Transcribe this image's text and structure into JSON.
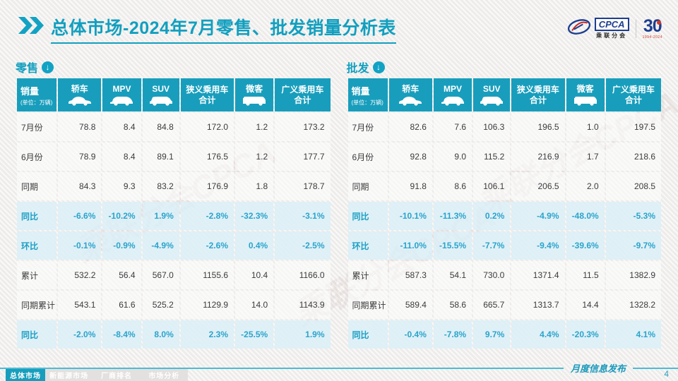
{
  "slide": {
    "title_bold": "总体市场",
    "title_rest": "-2024年7月零售、批发销量分析表",
    "footer_label": "月度信息发布",
    "page_number": "4"
  },
  "logos": {
    "cpca_acronym": "CPCA",
    "cpca_cn": "乘联分会",
    "anniversary_number": "30",
    "anniversary_years": "1994-2024"
  },
  "watermark": "乘联分会CPCA",
  "tables": [
    {
      "section": "零售",
      "sales_label": "销量",
      "unit_label": "(单位：万辆)",
      "columns": [
        {
          "label": "轿车",
          "icon": "sedan-icon"
        },
        {
          "label": "MPV",
          "icon": "mpv-icon"
        },
        {
          "label": "SUV",
          "icon": "suv-icon"
        },
        {
          "label": "狭义乘用车",
          "label2": "合计"
        },
        {
          "label": "微客",
          "icon": "minibus-icon"
        },
        {
          "label": "广义乘用车",
          "label2": "合计"
        }
      ],
      "rows": [
        {
          "label": "7月份",
          "type": "value",
          "cells": [
            "78.8",
            "8.4",
            "84.8",
            "172.0",
            "1.2",
            "173.2"
          ]
        },
        {
          "label": "6月份",
          "type": "value",
          "cells": [
            "78.9",
            "8.4",
            "89.1",
            "176.5",
            "1.2",
            "177.7"
          ]
        },
        {
          "label": "同期",
          "type": "value",
          "cells": [
            "84.3",
            "9.3",
            "83.2",
            "176.9",
            "1.8",
            "178.7"
          ]
        },
        {
          "label": "同比",
          "type": "percent",
          "cells": [
            "-6.6%",
            "-10.2%",
            "1.9%",
            "-2.8%",
            "-32.3%",
            "-3.1%"
          ]
        },
        {
          "label": "环比",
          "type": "percent",
          "cells": [
            "-0.1%",
            "-0.9%",
            "-4.9%",
            "-2.6%",
            "0.4%",
            "-2.5%"
          ]
        },
        {
          "label": "累计",
          "type": "value",
          "cells": [
            "532.2",
            "56.4",
            "567.0",
            "1155.6",
            "10.4",
            "1166.0"
          ]
        },
        {
          "label": "同期累计",
          "type": "value",
          "cells": [
            "543.1",
            "61.6",
            "525.2",
            "1129.9",
            "14.0",
            "1143.9"
          ]
        },
        {
          "label": "同比",
          "type": "percent",
          "cells": [
            "-2.0%",
            "-8.4%",
            "8.0%",
            "2.3%",
            "-25.5%",
            "1.9%"
          ]
        }
      ]
    },
    {
      "section": "批发",
      "sales_label": "销量",
      "unit_label": "(单位：万辆)",
      "columns": [
        {
          "label": "轿车",
          "icon": "sedan-icon"
        },
        {
          "label": "MPV",
          "icon": "mpv-icon"
        },
        {
          "label": "SUV",
          "icon": "suv-icon"
        },
        {
          "label": "狭义乘用车",
          "label2": "合计"
        },
        {
          "label": "微客",
          "icon": "minibus-icon"
        },
        {
          "label": "广义乘用车",
          "label2": "合计"
        }
      ],
      "rows": [
        {
          "label": "7月份",
          "type": "value",
          "cells": [
            "82.6",
            "7.6",
            "106.3",
            "196.5",
            "1.0",
            "197.5"
          ]
        },
        {
          "label": "6月份",
          "type": "value",
          "cells": [
            "92.8",
            "9.0",
            "115.2",
            "216.9",
            "1.7",
            "218.6"
          ]
        },
        {
          "label": "同期",
          "type": "value",
          "cells": [
            "91.8",
            "8.6",
            "106.1",
            "206.5",
            "2.0",
            "208.5"
          ]
        },
        {
          "label": "同比",
          "type": "percent",
          "cells": [
            "-10.1%",
            "-11.3%",
            "0.2%",
            "-4.9%",
            "-48.0%",
            "-5.3%"
          ]
        },
        {
          "label": "环比",
          "type": "percent",
          "cells": [
            "-11.0%",
            "-15.5%",
            "-7.7%",
            "-9.4%",
            "-39.6%",
            "-9.7%"
          ]
        },
        {
          "label": "累计",
          "type": "value",
          "cells": [
            "587.3",
            "54.1",
            "730.0",
            "1371.4",
            "11.5",
            "1382.9"
          ]
        },
        {
          "label": "同期累计",
          "type": "value",
          "cells": [
            "589.4",
            "58.6",
            "665.7",
            "1313.7",
            "14.4",
            "1328.2"
          ]
        },
        {
          "label": "同比",
          "type": "percent",
          "cells": [
            "-0.4%",
            "-7.8%",
            "9.7%",
            "4.4%",
            "-20.3%",
            "4.1%"
          ]
        }
      ]
    }
  ],
  "nav": {
    "tabs": [
      {
        "label": "总体市场",
        "active": true
      },
      {
        "label": "新能源市场",
        "active": false
      },
      {
        "label": "厂商排名",
        "active": false
      },
      {
        "label": "市场分析",
        "active": false
      }
    ]
  }
}
